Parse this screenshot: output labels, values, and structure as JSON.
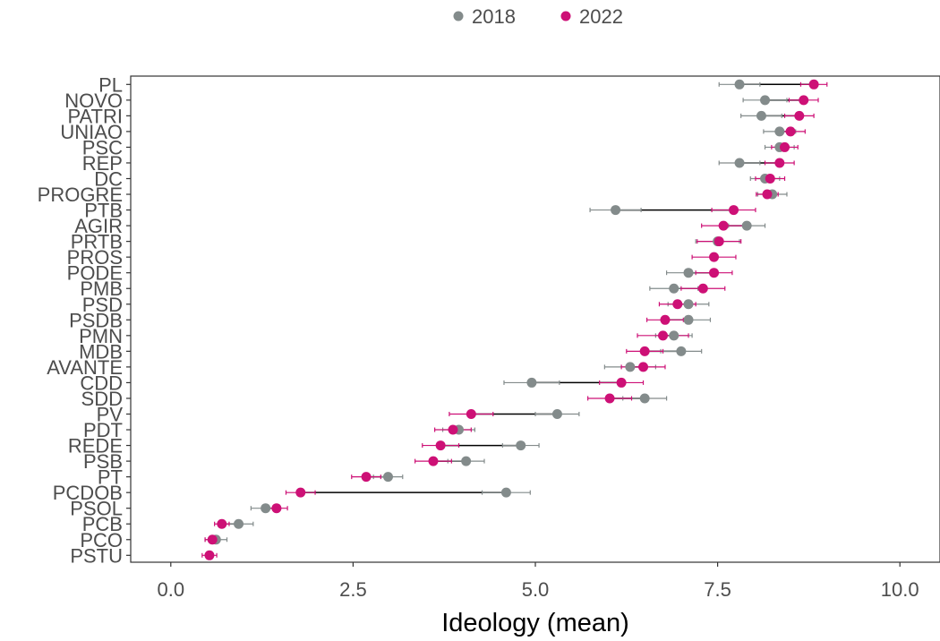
{
  "chart_data": {
    "type": "scatter",
    "xlabel": "Ideology (mean)",
    "ylabel": "",
    "xlim": [
      -0.55,
      10.55
    ],
    "xticks": [
      0.0,
      2.5,
      5.0,
      7.5,
      10.0
    ],
    "xtick_labels": [
      "0.0",
      "2.5",
      "5.0",
      "7.5",
      "10.0"
    ],
    "grid": false,
    "legend_position": "top",
    "colors": {
      "2018": "#838b8b",
      "2022": "#cd1076",
      "segment": "#000000"
    },
    "categories": [
      "PL",
      "NOVO",
      "PATRI",
      "UNIAO",
      "PSC",
      "REP",
      "DC",
      "PROGRE",
      "PTB",
      "AGIR",
      "PRTB",
      "PROS",
      "PODE",
      "PMB",
      "PSD",
      "PSDB",
      "PMN",
      "MDB",
      "AVANTE",
      "CDD",
      "SDD",
      "PV",
      "PDT",
      "REDE",
      "PSB",
      "PT",
      "PCDOB",
      "PSOL",
      "PCB",
      "PCO",
      "PSTU"
    ],
    "series": [
      {
        "name": "2018",
        "values": [
          7.8,
          8.15,
          8.1,
          8.35,
          8.35,
          7.8,
          8.15,
          8.25,
          6.1,
          7.9,
          7.5,
          null,
          7.1,
          6.9,
          7.1,
          7.1,
          6.9,
          7.0,
          6.3,
          4.95,
          6.5,
          5.3,
          3.95,
          4.8,
          4.05,
          2.98,
          4.6,
          1.3,
          0.93,
          0.62,
          null
        ],
        "errors": [
          0.28,
          0.3,
          0.28,
          0.22,
          0.2,
          0.28,
          0.2,
          0.2,
          0.35,
          0.25,
          0.3,
          null,
          0.3,
          0.33,
          0.28,
          0.3,
          0.25,
          0.28,
          0.35,
          0.38,
          0.3,
          0.3,
          0.22,
          0.25,
          0.25,
          0.2,
          0.33,
          0.2,
          0.2,
          0.15,
          null
        ]
      },
      {
        "name": "2022",
        "values": [
          8.82,
          8.68,
          8.62,
          8.5,
          8.42,
          8.35,
          8.22,
          8.18,
          7.72,
          7.58,
          7.52,
          7.45,
          7.45,
          7.3,
          6.95,
          6.78,
          6.75,
          6.5,
          6.48,
          6.18,
          6.02,
          4.12,
          3.87,
          3.7,
          3.6,
          2.68,
          1.78,
          1.45,
          0.7,
          0.57,
          0.53
        ],
        "errors": [
          0.18,
          0.2,
          0.2,
          0.2,
          0.18,
          0.2,
          0.2,
          0.15,
          0.3,
          0.3,
          0.3,
          0.3,
          0.25,
          0.3,
          0.25,
          0.25,
          0.35,
          0.25,
          0.3,
          0.3,
          0.3,
          0.3,
          0.25,
          0.25,
          0.25,
          0.2,
          0.2,
          0.15,
          0.1,
          0.1,
          0.1
        ]
      }
    ]
  }
}
